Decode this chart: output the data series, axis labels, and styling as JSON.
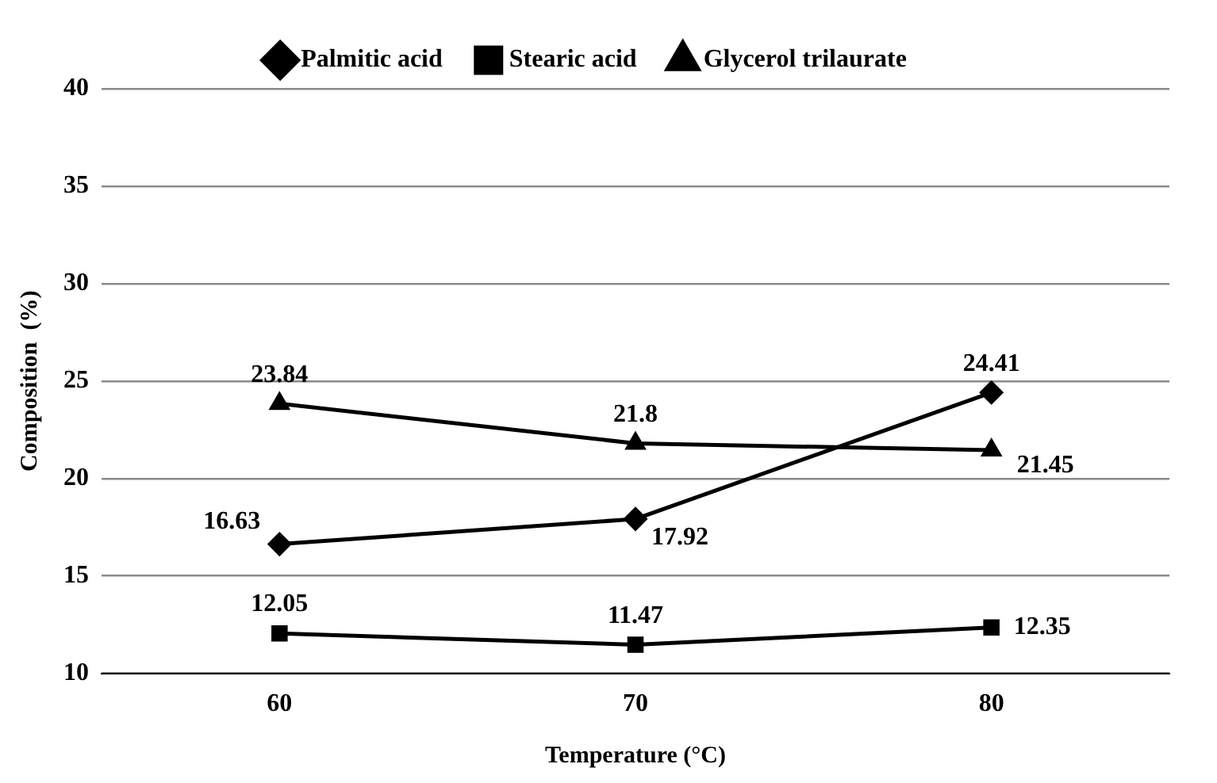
{
  "chart_data": {
    "type": "line",
    "xlabel": "Temperature (°C)",
    "ylabel": "Composition  (%)",
    "categories": [
      "60",
      "70",
      "80"
    ],
    "series": [
      {
        "name": "Palmitic acid",
        "color": "#000000",
        "marker": "diamond",
        "values": [
          16.63,
          17.92,
          24.41
        ]
      },
      {
        "name": "Stearic acid",
        "color": "#000000",
        "marker": "square",
        "values": [
          12.05,
          11.47,
          12.35
        ]
      },
      {
        "name": "Glycerol trilaurate",
        "color": "#000000",
        "marker": "triangle",
        "values": [
          23.84,
          21.8,
          21.45
        ]
      }
    ],
    "ylim": [
      10,
      40
    ],
    "yticks": [
      10,
      15,
      20,
      25,
      30,
      35,
      40
    ],
    "grid": "y",
    "legend": "top",
    "data_labels": true,
    "line_style": "solid"
  }
}
